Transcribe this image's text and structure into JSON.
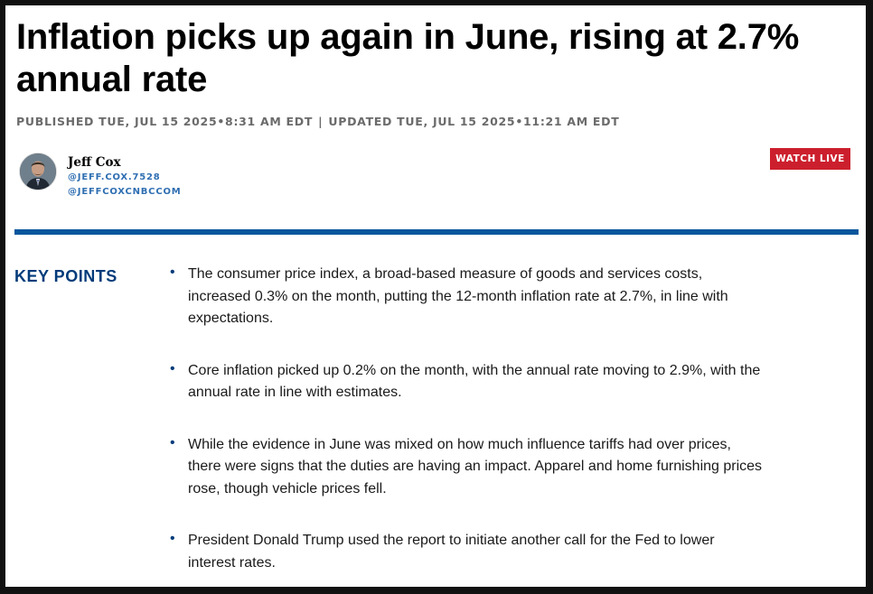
{
  "article": {
    "headline": "Inflation picks up again in June, rising at 2.7% annual rate",
    "published": "PUBLISHED TUE, JUL 15 2025•8:31 AM EDT",
    "separator": "|",
    "updated": "UPDATED TUE, JUL 15 2025•11:21 AM EDT"
  },
  "author": {
    "name": "Jeff Cox",
    "handle_1": "@JEFF.COX.7528",
    "handle_2": "@JEFFCOXCNBCCOM"
  },
  "actions": {
    "watch_live_label": "WATCH LIVE"
  },
  "key_points": {
    "label": "KEY POINTS",
    "items": [
      "The consumer price index, a broad-based measure of goods and services costs, increased 0.3% on the month, putting the 12-month inflation rate at 2.7%, in line with expectations.",
      "Core inflation picked up 0.2% on the month, with the annual rate moving to 2.9%, with the annual rate in line with estimates.",
      "While the evidence in June was mixed on how much influence tariffs had over prices, there were signs that the duties are having an impact. Apparel and home furnishing prices rose, though vehicle prices fell.",
      "President Donald Trump used the report to initiate another call for the Fed to lower interest rates."
    ]
  },
  "colors": {
    "accent_blue": "#07569c",
    "key_points_blue": "#003b7a",
    "watch_live_red": "#cc1f2d",
    "handle_blue": "#2f6fb2"
  },
  "icons": {
    "avatar": "author-photo",
    "bullet": "bullet-dot"
  }
}
